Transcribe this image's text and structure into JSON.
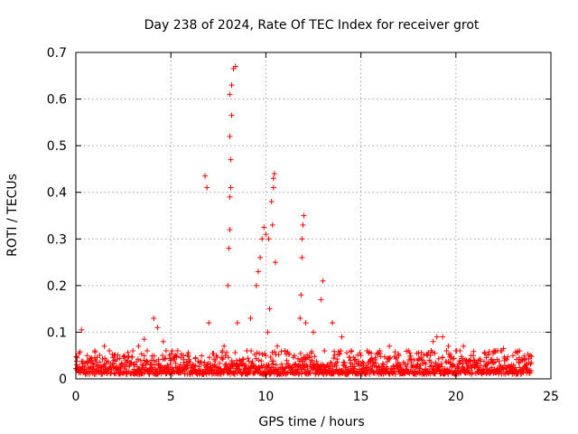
{
  "chart_data": {
    "type": "scatter",
    "title": "Day 238 of 2024, Rate Of TEC Index for receiver grot",
    "xlabel": "GPS time / hours",
    "ylabel": "ROTI / TECUs",
    "xlim": [
      0,
      25
    ],
    "ylim": [
      0,
      0.7
    ],
    "xticks": [
      0,
      5,
      10,
      15,
      20,
      25
    ],
    "xtick_labels": [
      "0",
      "5",
      "10",
      "15",
      "20",
      "25"
    ],
    "yticks": [
      0,
      0.1,
      0.2,
      0.3,
      0.4,
      0.5,
      0.6,
      0.7
    ],
    "ytick_labels": [
      "0",
      "0.1",
      "0.2",
      "0.3",
      "0.4",
      "0.5",
      "0.6",
      "0.7"
    ],
    "grid": true,
    "marker": "plus",
    "color": "#ff0000",
    "baseline_band": {
      "x_range": [
        0,
        24
      ],
      "y_min": 0.01,
      "y_max": 0.06
    },
    "x": [
      0.05,
      0.3,
      0.6,
      1.0,
      1.5,
      2.0,
      2.6,
      3.0,
      3.3,
      3.6,
      4.0,
      4.1,
      4.3,
      4.6,
      5.0,
      5.5,
      6.0,
      6.3,
      6.8,
      6.9,
      7.0,
      7.4,
      7.8,
      8.0,
      8.05,
      8.1,
      8.1,
      8.15,
      8.15,
      8.1,
      8.2,
      8.1,
      8.2,
      8.3,
      8.4,
      8.5,
      9.0,
      9.2,
      9.5,
      9.6,
      9.7,
      9.8,
      9.9,
      10.0,
      10.1,
      10.15,
      10.2,
      10.3,
      10.35,
      10.4,
      10.4,
      10.45,
      10.5,
      10.6,
      11.0,
      11.5,
      11.8,
      11.85,
      11.9,
      11.9,
      11.95,
      12.0,
      12.1,
      12.5,
      12.9,
      13.0,
      13.5,
      14.0,
      14.5,
      15.0,
      15.5,
      16.0,
      16.5,
      17.0,
      17.5,
      18.0,
      18.5,
      18.8,
      19.0,
      19.3,
      19.6,
      20.0,
      20.4,
      20.8,
      21.2,
      21.6,
      22.0,
      22.5,
      23.0,
      23.5,
      23.9
    ],
    "y": [
      0.03,
      0.105,
      0.05,
      0.06,
      0.07,
      0.04,
      0.03,
      0.06,
      0.07,
      0.085,
      0.04,
      0.13,
      0.11,
      0.08,
      0.04,
      0.03,
      0.035,
      0.045,
      0.435,
      0.41,
      0.12,
      0.05,
      0.07,
      0.2,
      0.28,
      0.32,
      0.39,
      0.41,
      0.47,
      0.52,
      0.565,
      0.61,
      0.63,
      0.665,
      0.67,
      0.12,
      0.06,
      0.13,
      0.2,
      0.23,
      0.26,
      0.3,
      0.325,
      0.31,
      0.1,
      0.3,
      0.15,
      0.38,
      0.33,
      0.41,
      0.43,
      0.44,
      0.25,
      0.07,
      0.06,
      0.05,
      0.13,
      0.18,
      0.26,
      0.3,
      0.33,
      0.35,
      0.12,
      0.1,
      0.17,
      0.21,
      0.12,
      0.09,
      0.06,
      0.05,
      0.04,
      0.06,
      0.07,
      0.05,
      0.06,
      0.04,
      0.05,
      0.08,
      0.09,
      0.09,
      0.07,
      0.06,
      0.07,
      0.05,
      0.04,
      0.03,
      0.06,
      0.065,
      0.05,
      0.04,
      0.05
    ]
  }
}
